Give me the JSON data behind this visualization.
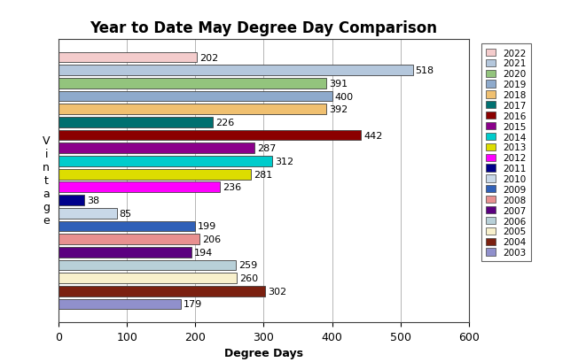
{
  "title": "Year to Date May Degree Day Comparison",
  "xlabel": "Degree Days",
  "ylabel": "V\ni\nn\nt\na\ng\ne",
  "xlim": [
    0,
    600
  ],
  "xticks": [
    0,
    100,
    200,
    300,
    400,
    500,
    600
  ],
  "years": [
    2022,
    2021,
    2020,
    2019,
    2018,
    2017,
    2016,
    2015,
    2014,
    2013,
    2012,
    2011,
    2010,
    2009,
    2008,
    2007,
    2006,
    2005,
    2004,
    2003
  ],
  "values": [
    202,
    518,
    391,
    400,
    392,
    226,
    442,
    287,
    312,
    281,
    236,
    38,
    85,
    199,
    206,
    194,
    259,
    260,
    302,
    179
  ],
  "colors": [
    "#F4CCCC",
    "#B4C7DC",
    "#93C47D",
    "#8EAACC",
    "#F0C070",
    "#007070",
    "#8B0000",
    "#8B008B",
    "#00CCCC",
    "#DDDD00",
    "#FF00FF",
    "#00008B",
    "#C8D8E8",
    "#3060B8",
    "#E89090",
    "#5B0080",
    "#B8D0D8",
    "#F8F0CC",
    "#7B2010",
    "#9090CC"
  ],
  "bar_edgecolor": "#404040",
  "background_color": "#ffffff",
  "plot_bg_color": "#ffffff",
  "title_fontsize": 12,
  "label_fontsize": 9,
  "tick_fontsize": 9,
  "value_fontsize": 8,
  "legend_fontsize": 7.5
}
